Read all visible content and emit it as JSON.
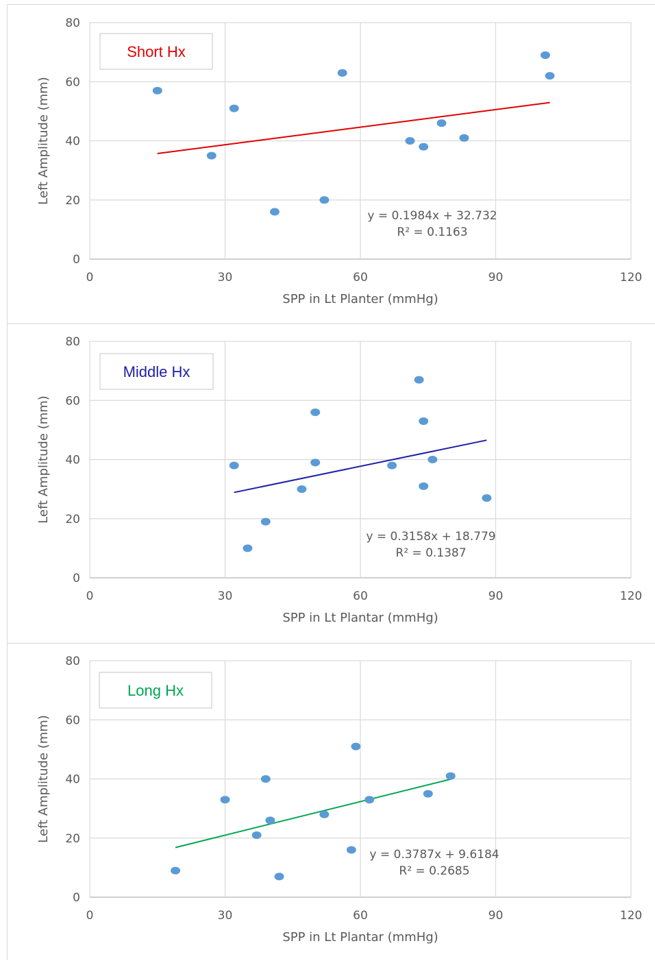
{
  "chart_data": [
    {
      "type": "scatter",
      "legend": "Short Hx",
      "legend_color": "#e00000",
      "trend_color": "#e00000",
      "point_color": "#5b9bd5",
      "xlabel": "SPP in Lt Planter (mmHg)",
      "ylabel": "Left Amplitude (mm)",
      "xlim": [
        0,
        120
      ],
      "ylim": [
        0,
        80
      ],
      "xticks": [
        "0",
        "30",
        "60",
        "90",
        "120"
      ],
      "yticks": [
        "0",
        "20",
        "40",
        "60",
        "80"
      ],
      "grid": true,
      "legend_position": "top-left",
      "points": [
        {
          "x": 15,
          "y": 57
        },
        {
          "x": 27,
          "y": 35
        },
        {
          "x": 32,
          "y": 51
        },
        {
          "x": 41,
          "y": 16
        },
        {
          "x": 52,
          "y": 20
        },
        {
          "x": 56,
          "y": 63
        },
        {
          "x": 71,
          "y": 40
        },
        {
          "x": 74,
          "y": 38
        },
        {
          "x": 78,
          "y": 46
        },
        {
          "x": 83,
          "y": 41
        },
        {
          "x": 101,
          "y": 69
        },
        {
          "x": 102,
          "y": 62
        }
      ],
      "trendline": {
        "slope": 0.1984,
        "intercept": 32.732,
        "x_range": [
          15,
          102
        ]
      },
      "equation": "y = 0.1984x + 32.732",
      "r_squared": "R² = 0.1163"
    },
    {
      "type": "scatter",
      "legend": "Middle Hx",
      "legend_color": "#1f1fa8",
      "trend_color": "#1f1fa8",
      "point_color": "#5b9bd5",
      "xlabel": "SPP in Lt Plantar (mmHg)",
      "ylabel": "Left Amplitude (mm)",
      "xlim": [
        0,
        120
      ],
      "ylim": [
        0,
        80
      ],
      "xticks": [
        "0",
        "30",
        "60",
        "90",
        "120"
      ],
      "yticks": [
        "0",
        "20",
        "40",
        "60",
        "80"
      ],
      "grid": true,
      "legend_position": "top-left",
      "points": [
        {
          "x": 32,
          "y": 38
        },
        {
          "x": 35,
          "y": 10
        },
        {
          "x": 39,
          "y": 19
        },
        {
          "x": 47,
          "y": 30
        },
        {
          "x": 50,
          "y": 56
        },
        {
          "x": 50,
          "y": 39
        },
        {
          "x": 67,
          "y": 38
        },
        {
          "x": 73,
          "y": 67
        },
        {
          "x": 74,
          "y": 53
        },
        {
          "x": 74,
          "y": 31
        },
        {
          "x": 76,
          "y": 40
        },
        {
          "x": 88,
          "y": 27
        }
      ],
      "trendline": {
        "slope": 0.3158,
        "intercept": 18.779,
        "x_range": [
          32,
          88
        ]
      },
      "equation": "y = 0.3158x + 18.779",
      "r_squared": "R² = 0.1387"
    },
    {
      "type": "scatter",
      "legend": "Long Hx",
      "legend_color": "#00a651",
      "trend_color": "#00a651",
      "point_color": "#5b9bd5",
      "xlabel": "SPP in Lt Plantar (mmHg)",
      "ylabel": "Left Amplitude (mm)",
      "xlim": [
        0,
        120
      ],
      "ylim": [
        0,
        80
      ],
      "xticks": [
        "0",
        "30",
        "60",
        "90",
        "120"
      ],
      "yticks": [
        "0",
        "20",
        "40",
        "60",
        "80"
      ],
      "grid": true,
      "legend_position": "top-left",
      "points": [
        {
          "x": 19,
          "y": 9
        },
        {
          "x": 30,
          "y": 33
        },
        {
          "x": 37,
          "y": 21
        },
        {
          "x": 39,
          "y": 40
        },
        {
          "x": 40,
          "y": 26
        },
        {
          "x": 42,
          "y": 7
        },
        {
          "x": 52,
          "y": 28
        },
        {
          "x": 58,
          "y": 16
        },
        {
          "x": 59,
          "y": 51
        },
        {
          "x": 62,
          "y": 33
        },
        {
          "x": 75,
          "y": 35
        },
        {
          "x": 80,
          "y": 41
        }
      ],
      "trendline": {
        "slope": 0.3787,
        "intercept": 9.6184,
        "x_range": [
          19,
          80
        ]
      },
      "equation": "y = 0.3787x + 9.6184",
      "r_squared": "R² = 0.2685"
    }
  ]
}
